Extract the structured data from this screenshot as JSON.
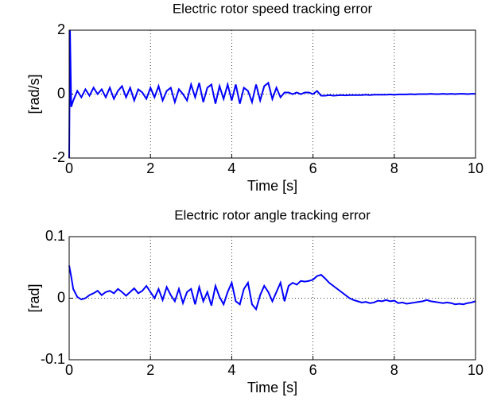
{
  "chart_data": [
    {
      "type": "line",
      "title": "Electric rotor speed tracking error",
      "x_label": "Time [s]",
      "y_label": "[rad/s]",
      "xlim": [
        0,
        10
      ],
      "ylim": [
        -2,
        2
      ],
      "xticks": [
        0,
        2,
        4,
        6,
        8,
        10
      ],
      "yticks": [
        -2,
        0,
        2
      ],
      "grid": true,
      "series": [
        {
          "color": "#0000ff",
          "x": [
            0,
            0.02,
            0.05,
            0.1,
            0.2,
            0.3,
            0.4,
            0.5,
            0.6,
            0.7,
            0.8,
            0.9,
            1.0,
            1.1,
            1.2,
            1.3,
            1.4,
            1.5,
            1.6,
            1.7,
            1.8,
            1.9,
            2.0,
            2.1,
            2.2,
            2.3,
            2.4,
            2.5,
            2.6,
            2.7,
            2.8,
            2.9,
            3.0,
            3.1,
            3.2,
            3.3,
            3.4,
            3.5,
            3.6,
            3.7,
            3.8,
            3.9,
            4.0,
            4.1,
            4.2,
            4.3,
            4.4,
            4.5,
            4.6,
            4.7,
            4.8,
            4.9,
            5.0,
            5.1,
            5.2,
            5.3,
            5.4,
            5.5,
            5.6,
            5.7,
            5.8,
            5.9,
            6.0,
            6.1,
            6.2,
            6.3,
            6.4,
            6.5,
            6.6,
            6.7,
            6.8,
            6.9,
            7.0,
            7.1,
            7.2,
            7.3,
            7.4,
            7.5,
            7.6,
            7.7,
            7.8,
            7.9,
            8.0,
            8.1,
            8.2,
            8.3,
            8.4,
            8.5,
            8.6,
            8.7,
            8.8,
            8.9,
            9.0,
            9.1,
            9.2,
            9.3,
            9.4,
            9.5,
            9.6,
            9.7,
            9.8,
            9.9,
            10.0
          ],
          "values": [
            -2,
            2,
            -0.4,
            -0.2,
            0.1,
            -0.1,
            0.15,
            -0.05,
            0.2,
            0.0,
            0.15,
            -0.1,
            0.2,
            -0.15,
            0.1,
            0.25,
            -0.1,
            0.2,
            -0.2,
            0.15,
            0.05,
            -0.15,
            0.2,
            -0.1,
            0.25,
            -0.2,
            0.1,
            0.2,
            -0.25,
            0.15,
            0.0,
            -0.2,
            0.3,
            -0.1,
            0.35,
            -0.25,
            0.2,
            0.3,
            -0.3,
            0.25,
            -0.15,
            0.3,
            -0.2,
            0.3,
            -0.3,
            0.2,
            0.1,
            -0.25,
            0.3,
            -0.2,
            0.25,
            0.35,
            -0.15,
            0.2,
            -0.1,
            0.05,
            0.05,
            0.0,
            0.05,
            0.0,
            0.05,
            0.05,
            0.0,
            0.1,
            -0.05,
            -0.05,
            -0.03,
            -0.05,
            -0.04,
            -0.03,
            -0.04,
            -0.03,
            -0.03,
            -0.03,
            -0.03,
            -0.02,
            -0.03,
            -0.02,
            -0.02,
            -0.02,
            -0.02,
            -0.01,
            -0.02,
            -0.01,
            -0.01,
            -0.01,
            0.0,
            -0.01,
            0.0,
            0.0,
            0.0,
            0.01,
            0.0,
            0.0,
            0.01,
            0.0,
            0.01,
            0.0,
            0.01,
            0.01,
            0.0,
            0.01,
            0.01
          ]
        }
      ]
    },
    {
      "type": "line",
      "title": "Electric rotor angle tracking error",
      "x_label": "Time [s]",
      "y_label": "[rad]",
      "xlim": [
        0,
        10
      ],
      "ylim": [
        -0.1,
        0.1
      ],
      "xticks": [
        0,
        2,
        4,
        6,
        8,
        10
      ],
      "yticks": [
        -0.1,
        0,
        0.1
      ],
      "grid": true,
      "series": [
        {
          "color": "#0000ff",
          "x": [
            0,
            0.05,
            0.1,
            0.2,
            0.3,
            0.4,
            0.5,
            0.6,
            0.7,
            0.8,
            0.9,
            1.0,
            1.1,
            1.2,
            1.3,
            1.4,
            1.5,
            1.6,
            1.7,
            1.8,
            1.9,
            2.0,
            2.1,
            2.2,
            2.3,
            2.4,
            2.5,
            2.6,
            2.7,
            2.8,
            2.9,
            3.0,
            3.1,
            3.2,
            3.3,
            3.4,
            3.5,
            3.6,
            3.7,
            3.8,
            3.9,
            4.0,
            4.1,
            4.2,
            4.3,
            4.4,
            4.5,
            4.6,
            4.7,
            4.8,
            4.9,
            5.0,
            5.1,
            5.2,
            5.3,
            5.4,
            5.5,
            5.6,
            5.7,
            5.8,
            5.9,
            6.0,
            6.1,
            6.2,
            6.3,
            6.4,
            6.5,
            6.6,
            6.7,
            6.8,
            6.9,
            7.0,
            7.1,
            7.2,
            7.3,
            7.4,
            7.5,
            7.6,
            7.7,
            7.8,
            7.9,
            8.0,
            8.1,
            8.2,
            8.3,
            8.4,
            8.5,
            8.6,
            8.7,
            8.8,
            8.9,
            9.0,
            9.1,
            9.2,
            9.3,
            9.4,
            9.5,
            9.6,
            9.7,
            9.8,
            9.9,
            10.0
          ],
          "values": [
            0.053,
            0.035,
            0.015,
            0.002,
            -0.002,
            0.0,
            0.005,
            0.008,
            0.012,
            0.005,
            0.01,
            0.012,
            0.008,
            0.015,
            0.01,
            0.004,
            0.01,
            0.016,
            0.008,
            0.012,
            0.02,
            0.01,
            0.0,
            0.015,
            -0.003,
            0.018,
            0.005,
            -0.005,
            0.015,
            -0.008,
            0.01,
            0.015,
            -0.01,
            0.018,
            -0.005,
            0.01,
            -0.012,
            0.02,
            0.002,
            -0.01,
            0.01,
            0.025,
            -0.005,
            -0.01,
            0.015,
            0.025,
            -0.01,
            -0.018,
            0.005,
            0.02,
            0.01,
            -0.005,
            0.01,
            0.025,
            -0.005,
            0.02,
            0.025,
            0.022,
            0.028,
            0.027,
            0.028,
            0.03,
            0.036,
            0.038,
            0.032,
            0.025,
            0.02,
            0.015,
            0.01,
            0.005,
            0.0,
            -0.003,
            -0.005,
            -0.007,
            -0.006,
            -0.008,
            -0.007,
            -0.004,
            -0.005,
            -0.003,
            -0.005,
            -0.004,
            -0.008,
            -0.007,
            -0.009,
            -0.008,
            -0.007,
            -0.006,
            -0.005,
            -0.003,
            -0.005,
            -0.006,
            -0.007,
            -0.008,
            -0.007,
            -0.008,
            -0.01,
            -0.009,
            -0.01,
            -0.008,
            -0.007,
            -0.005
          ]
        }
      ]
    }
  ]
}
